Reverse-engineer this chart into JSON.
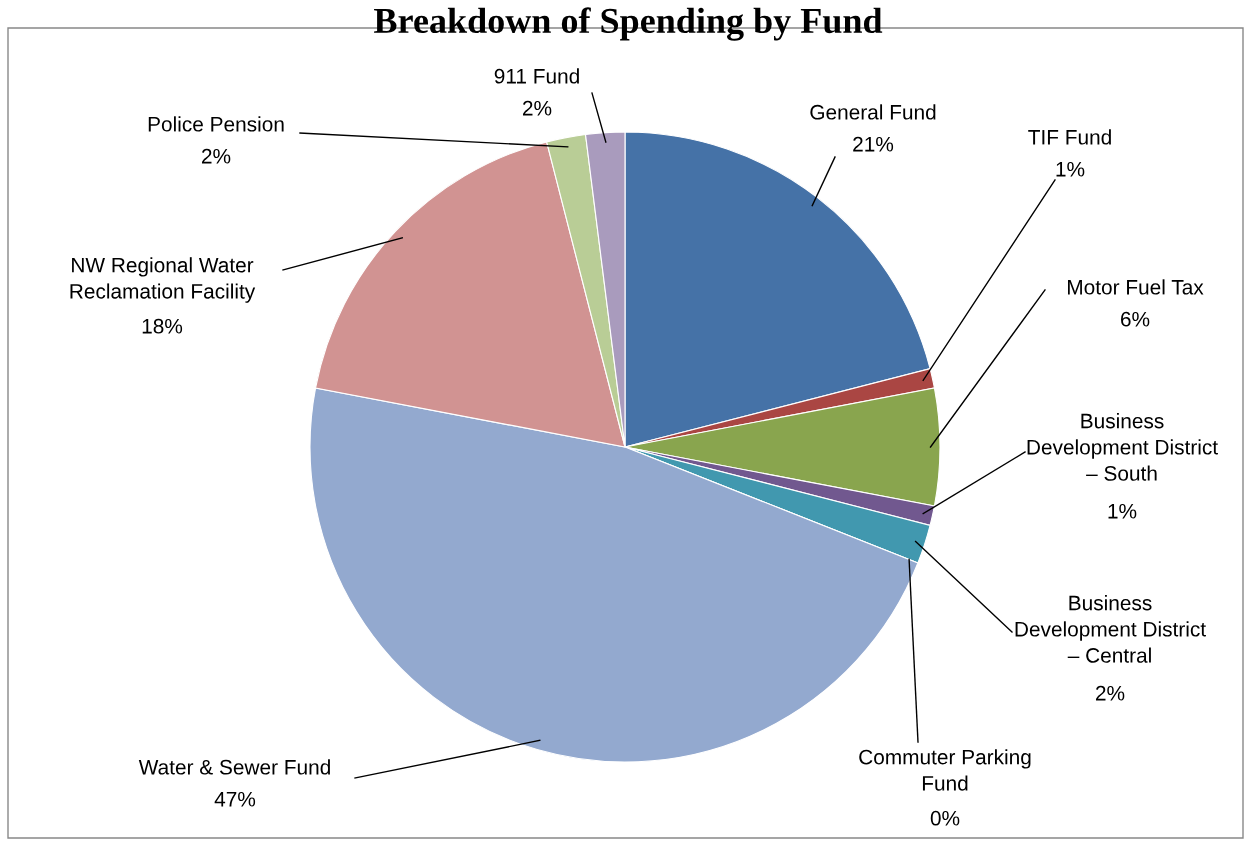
{
  "chart_data": {
    "type": "pie",
    "title": "Breakdown of Spending by Fund",
    "categories": [
      "General Fund",
      "TIF Fund",
      "Motor Fuel Tax",
      "Business Development District – South",
      "Business Development District – Central",
      "Commuter Parking Fund",
      "Water & Sewer Fund",
      "NW Regional Water Reclamation Facility",
      "Police Pension",
      "911 Fund"
    ],
    "values": [
      21,
      1,
      6,
      1,
      2,
      0,
      47,
      18,
      2,
      2
    ],
    "value_labels": [
      "21%",
      "1%",
      "6%",
      "1%",
      "2%",
      "0%",
      "47%",
      "18%",
      "2%",
      "2%"
    ],
    "colors": [
      "#4572a7",
      "#aa4643",
      "#89a54e",
      "#71588f",
      "#4198af",
      "#db843d",
      "#93a9cf",
      "#d19392",
      "#b9cd96",
      "#a99bbd"
    ],
    "legend": false
  }
}
